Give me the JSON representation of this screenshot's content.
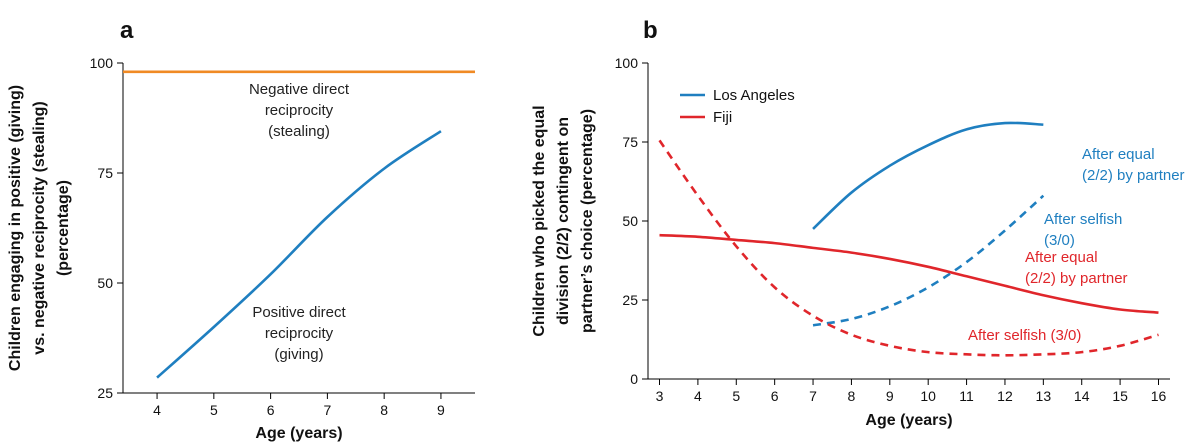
{
  "chart_data": [
    {
      "type": "line",
      "panel_label": "a",
      "xlabel": "Age (years)",
      "ylabel": [
        "Children engaging in positive (giving)",
        "vs. negative reciprocity (stealing)",
        "(percentage)"
      ],
      "xlim": [
        3.4,
        9.6
      ],
      "ylim": [
        25,
        100
      ],
      "x_ticks": [
        4,
        5,
        6,
        7,
        8,
        9
      ],
      "y_ticks": [
        25,
        50,
        75,
        100
      ],
      "series": [
        {
          "color": "#f08a24",
          "style": "solid",
          "points": [
            [
              3.4,
              98
            ],
            [
              4,
              98
            ],
            [
              5,
              98
            ],
            [
              6,
              98
            ],
            [
              7,
              98
            ],
            [
              8,
              98
            ],
            [
              9,
              98
            ],
            [
              9.6,
              98
            ]
          ],
          "label": [
            "Negative direct",
            "reciprocity",
            "(stealing)"
          ]
        },
        {
          "color": "#1f7fc0",
          "style": "solid",
          "points": [
            [
              4,
              28.5
            ],
            [
              5,
              40
            ],
            [
              6,
              52
            ],
            [
              7,
              65
            ],
            [
              8,
              76
            ],
            [
              9,
              84.5
            ]
          ],
          "label": [
            "Positive direct",
            "reciprocity",
            "(giving)"
          ]
        }
      ]
    },
    {
      "type": "line",
      "panel_label": "b",
      "xlabel": "Age (years)",
      "ylabel": [
        "Children who picked the equal",
        "division (2/2) contingent on",
        "partner’s choice (percentage)"
      ],
      "xlim": [
        2.7,
        16.3
      ],
      "ylim": [
        0,
        100
      ],
      "x_ticks": [
        3,
        4,
        5,
        6,
        7,
        8,
        9,
        10,
        11,
        12,
        13,
        14,
        15,
        16
      ],
      "y_ticks": [
        0,
        25,
        50,
        75,
        100
      ],
      "legend": [
        {
          "name": "Los Angeles",
          "color": "#1f7fc0"
        },
        {
          "name": "Fiji",
          "color": "#e0262b"
        }
      ],
      "legend_position": "top-left",
      "series": [
        {
          "color": "#1f7fc0",
          "style": "solid",
          "points": [
            [
              7,
              47.5
            ],
            [
              8,
              59
            ],
            [
              9,
              67.5
            ],
            [
              10,
              74
            ],
            [
              11,
              79
            ],
            [
              12,
              81
            ],
            [
              13,
              80.5
            ]
          ],
          "label": [
            "After equal",
            "(2/2) by partner"
          ]
        },
        {
          "color": "#1f7fc0",
          "style": "dashed",
          "points": [
            [
              7,
              17
            ],
            [
              8,
              19
            ],
            [
              9,
              23
            ],
            [
              10,
              29
            ],
            [
              11,
              37
            ],
            [
              12,
              47
            ],
            [
              13,
              58
            ]
          ],
          "label": [
            "After selfish",
            "(3/0)"
          ]
        },
        {
          "color": "#e0262b",
          "style": "solid",
          "points": [
            [
              3,
              45.5
            ],
            [
              4,
              45
            ],
            [
              5,
              44
            ],
            [
              6,
              43
            ],
            [
              7,
              41.5
            ],
            [
              8,
              40
            ],
            [
              9,
              38
            ],
            [
              10,
              35.5
            ],
            [
              11,
              32.5
            ],
            [
              12,
              29.5
            ],
            [
              13,
              26.5
            ],
            [
              14,
              24
            ],
            [
              15,
              22
            ],
            [
              16,
              21
            ]
          ],
          "label": [
            "After equal",
            "(2/2) by partner"
          ]
        },
        {
          "color": "#e0262b",
          "style": "dashed",
          "points": [
            [
              3,
              75.5
            ],
            [
              4,
              58
            ],
            [
              5,
              42
            ],
            [
              6,
              29
            ],
            [
              7,
              20
            ],
            [
              8,
              14
            ],
            [
              9,
              10.5
            ],
            [
              10,
              8.5
            ],
            [
              11,
              7.8
            ],
            [
              12,
              7.5
            ],
            [
              13,
              7.8
            ],
            [
              14,
              8.5
            ],
            [
              15,
              10.5
            ],
            [
              16,
              14
            ]
          ],
          "label": [
            "After selfish (3/0)"
          ]
        }
      ]
    }
  ]
}
